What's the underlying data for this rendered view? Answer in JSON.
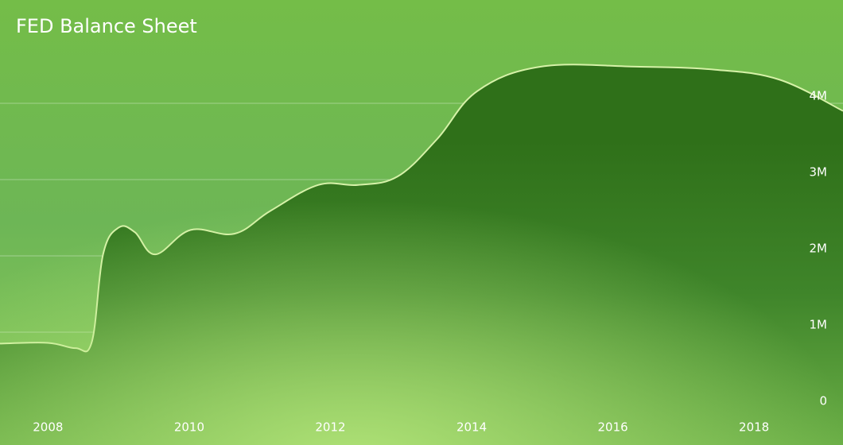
{
  "chart_data": {
    "type": "area",
    "title": "FED Balance Sheet",
    "x": [
      2007.32,
      2008.0,
      2008.39,
      2008.62,
      2008.78,
      2009.0,
      2009.23,
      2009.52,
      2010.02,
      2010.64,
      2011.15,
      2011.83,
      2012.39,
      2012.95,
      2013.51,
      2014.08,
      2014.98,
      2016.33,
      2017.45,
      2018.36,
      2019.26
    ],
    "series": [
      {
        "color": "#2f7019",
        "values": [
          850000,
          860000,
          790000,
          870000,
          2020000,
          2370000,
          2310000,
          2020000,
          2340000,
          2290000,
          2590000,
          2930000,
          2930000,
          3040000,
          3530000,
          4160000,
          4480000,
          4480000,
          4440000,
          4310000,
          3900000
        ]
      }
    ],
    "xlim": [
      2007.32,
      2019.26
    ],
    "xticks": [
      2008,
      2010,
      2012,
      2014,
      2016,
      2018
    ],
    "ylim": [
      0,
      5000000
    ],
    "yticks": [
      {
        "value": 0,
        "label": "0"
      },
      {
        "value": 1000000,
        "label": "1M"
      },
      {
        "value": 2000000,
        "label": "2M"
      },
      {
        "value": 3000000,
        "label": "3M"
      },
      {
        "value": 4000000,
        "label": "4M"
      }
    ],
    "grid": true
  }
}
